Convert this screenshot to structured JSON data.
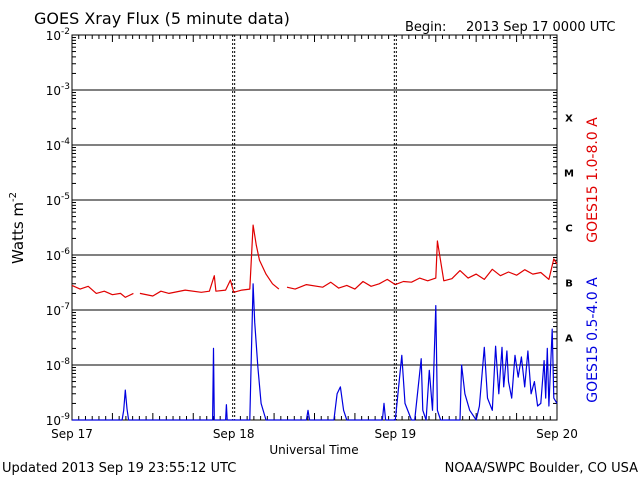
{
  "title": "GOES Xray Flux (5 minute data)",
  "begin_label": "Begin:",
  "begin_value": "2013 Sep 17 0000 UTC",
  "footer_left": "Updated 2013 Sep 19 23:55:12 UTC",
  "footer_right": "NOAA/SWPC Boulder, CO USA",
  "chart_data": {
    "type": "line",
    "xlabel": "Universal Time",
    "ylabel": "Watts m",
    "ylabel_superscript": "-2",
    "y_scale": "log",
    "ylim": [
      1e-09,
      0.01
    ],
    "xlim_days": [
      0,
      3
    ],
    "x_ticks": [
      "Sep 17",
      "Sep 18",
      "Sep 19",
      "Sep 20"
    ],
    "y_ticks": [
      {
        "base": "10",
        "exp": "-2"
      },
      {
        "base": "10",
        "exp": "-3"
      },
      {
        "base": "10",
        "exp": "-4"
      },
      {
        "base": "10",
        "exp": "-5"
      },
      {
        "base": "10",
        "exp": "-6"
      },
      {
        "base": "10",
        "exp": "-7"
      },
      {
        "base": "10",
        "exp": "-8"
      },
      {
        "base": "10",
        "exp": "-9"
      }
    ],
    "flare_classes": [
      "X",
      "M",
      "C",
      "B",
      "A"
    ],
    "colors": {
      "long": "#e00000",
      "short": "#0000e0",
      "grid": "#000000"
    },
    "series": [
      {
        "name": "GOES15 1.0-8.0 A",
        "color": "#e00000",
        "points": [
          [
            0.0,
            2.8e-07
          ],
          [
            0.05,
            2.4e-07
          ],
          [
            0.1,
            2.7e-07
          ],
          [
            0.15,
            2e-07
          ],
          [
            0.2,
            2.2e-07
          ],
          [
            0.25,
            1.9e-07
          ],
          [
            0.3,
            2e-07
          ],
          [
            0.33,
            1.7e-07
          ],
          [
            0.38,
            2e-07
          ],
          [
            0.4,
            null
          ],
          [
            0.42,
            2e-07
          ],
          [
            0.5,
            1.8e-07
          ],
          [
            0.55,
            2.2e-07
          ],
          [
            0.6,
            2e-07
          ],
          [
            0.7,
            2.3e-07
          ],
          [
            0.8,
            2.1e-07
          ],
          [
            0.85,
            2.2e-07
          ],
          [
            0.88,
            4.2e-07
          ],
          [
            0.89,
            2.2e-07
          ],
          [
            0.95,
            2.3e-07
          ],
          [
            0.98,
            3.5e-07
          ],
          [
            1.0,
            2.1e-07
          ],
          [
            1.05,
            2.3e-07
          ],
          [
            1.1,
            2.4e-07
          ],
          [
            1.12,
            3.5e-06
          ],
          [
            1.14,
            1.5e-06
          ],
          [
            1.16,
            8e-07
          ],
          [
            1.2,
            4.5e-07
          ],
          [
            1.24,
            3e-07
          ],
          [
            1.28,
            2.4e-07
          ],
          [
            1.3,
            null
          ],
          [
            1.33,
            2.6e-07
          ],
          [
            1.38,
            2.4e-07
          ],
          [
            1.45,
            2.9e-07
          ],
          [
            1.55,
            2.6e-07
          ],
          [
            1.6,
            3.2e-07
          ],
          [
            1.65,
            2.5e-07
          ],
          [
            1.7,
            2.8e-07
          ],
          [
            1.75,
            2.4e-07
          ],
          [
            1.8,
            3.3e-07
          ],
          [
            1.85,
            2.7e-07
          ],
          [
            1.9,
            3e-07
          ],
          [
            1.95,
            3.6e-07
          ],
          [
            2.0,
            2.9e-07
          ],
          [
            2.05,
            3.3e-07
          ],
          [
            2.1,
            3.2e-07
          ],
          [
            2.15,
            3.8e-07
          ],
          [
            2.2,
            3.4e-07
          ],
          [
            2.25,
            3.8e-07
          ],
          [
            2.26,
            1.8e-06
          ],
          [
            2.3,
            3.4e-07
          ],
          [
            2.35,
            3.7e-07
          ],
          [
            2.4,
            5.2e-07
          ],
          [
            2.45,
            3.8e-07
          ],
          [
            2.5,
            4.5e-07
          ],
          [
            2.55,
            3.6e-07
          ],
          [
            2.6,
            5.5e-07
          ],
          [
            2.65,
            4.2e-07
          ],
          [
            2.7,
            4.9e-07
          ],
          [
            2.75,
            4.3e-07
          ],
          [
            2.8,
            5.4e-07
          ],
          [
            2.85,
            4.5e-07
          ],
          [
            2.9,
            4.8e-07
          ],
          [
            2.95,
            3.6e-07
          ],
          [
            2.98,
            8.5e-07
          ],
          [
            3.0,
            6.8e-07
          ]
        ]
      },
      {
        "name": "GOES15 0.5-4.0 A",
        "color": "#0000e0",
        "points": [
          [
            0.0,
            1e-09
          ],
          [
            0.31,
            1e-09
          ],
          [
            0.32,
            1.5e-09
          ],
          [
            0.33,
            3.5e-09
          ],
          [
            0.34,
            1.6e-09
          ],
          [
            0.35,
            1e-09
          ],
          [
            0.87,
            1e-09
          ],
          [
            0.875,
            2e-08
          ],
          [
            0.88,
            1e-09
          ],
          [
            0.95,
            1e-09
          ],
          [
            0.955,
            1.9e-09
          ],
          [
            0.96,
            1e-09
          ],
          [
            1.1,
            1e-09
          ],
          [
            1.11,
            2e-08
          ],
          [
            1.12,
            3e-07
          ],
          [
            1.13,
            6e-08
          ],
          [
            1.15,
            9e-09
          ],
          [
            1.17,
            2e-09
          ],
          [
            1.2,
            1e-09
          ],
          [
            1.45,
            1e-09
          ],
          [
            1.46,
            1.5e-09
          ],
          [
            1.47,
            1e-09
          ],
          [
            1.62,
            1e-09
          ],
          [
            1.64,
            3e-09
          ],
          [
            1.66,
            4e-09
          ],
          [
            1.68,
            1.5e-09
          ],
          [
            1.7,
            1e-09
          ],
          [
            1.92,
            1e-09
          ],
          [
            1.93,
            2e-09
          ],
          [
            1.94,
            1e-09
          ],
          [
            2.0,
            1e-09
          ],
          [
            2.04,
            1.5e-08
          ],
          [
            2.06,
            2e-09
          ],
          [
            2.1,
            1e-09
          ],
          [
            2.12,
            1e-09
          ],
          [
            2.16,
            1.3e-08
          ],
          [
            2.17,
            1.5e-09
          ],
          [
            2.19,
            1e-09
          ],
          [
            2.21,
            8e-09
          ],
          [
            2.23,
            1.5e-09
          ],
          [
            2.25,
            1.2e-07
          ],
          [
            2.26,
            1.5e-09
          ],
          [
            2.28,
            1e-09
          ],
          [
            2.4,
            1e-09
          ],
          [
            2.41,
            1e-08
          ],
          [
            2.43,
            3e-09
          ],
          [
            2.46,
            1.5e-09
          ],
          [
            2.5,
            1e-09
          ],
          [
            2.52,
            1.8e-09
          ],
          [
            2.55,
            2.1e-08
          ],
          [
            2.57,
            2.5e-09
          ],
          [
            2.6,
            1.5e-09
          ],
          [
            2.62,
            2.2e-08
          ],
          [
            2.64,
            3e-09
          ],
          [
            2.66,
            2.1e-08
          ],
          [
            2.67,
            4e-09
          ],
          [
            2.69,
            1.8e-08
          ],
          [
            2.7,
            5e-09
          ],
          [
            2.72,
            2.5e-09
          ],
          [
            2.74,
            1.5e-08
          ],
          [
            2.76,
            6e-09
          ],
          [
            2.78,
            1.4e-08
          ],
          [
            2.8,
            4e-09
          ],
          [
            2.82,
            1.8e-08
          ],
          [
            2.84,
            3e-09
          ],
          [
            2.86,
            5e-09
          ],
          [
            2.88,
            1.8e-09
          ],
          [
            2.9,
            2e-09
          ],
          [
            2.92,
            1.2e-08
          ],
          [
            2.93,
            2.5e-09
          ],
          [
            2.94,
            2e-08
          ],
          [
            2.95,
            1.8e-09
          ],
          [
            2.97,
            4.5e-08
          ],
          [
            2.98,
            2.5e-09
          ],
          [
            3.0,
            2e-09
          ]
        ]
      }
    ]
  }
}
